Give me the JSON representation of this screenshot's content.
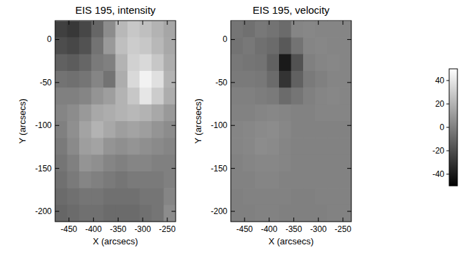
{
  "chart_data": [
    {
      "type": "heatmap",
      "title": "EIS 195, intensity",
      "x_label": "X (arcsecs)",
      "y_label": "Y (arcsecs)",
      "xlim": [
        -478,
        -233
      ],
      "ylim": [
        -212,
        22
      ],
      "xticks": [
        -450,
        -400,
        -350,
        -300,
        -250
      ],
      "yticks": [
        0,
        -50,
        -100,
        -150,
        -200
      ],
      "x": [
        -466,
        -441,
        -417,
        -392,
        -368,
        -343,
        -319,
        -294,
        -270,
        -245
      ],
      "y": [
        12,
        -7,
        -27,
        -46,
        -66,
        -85,
        -105,
        -124,
        -144,
        -163,
        -183,
        -202
      ],
      "color_range": [
        0,
        100
      ],
      "cells": [
        [
          25,
          22,
          28,
          40,
          55,
          72,
          78,
          75,
          70,
          65
        ],
        [
          30,
          28,
          32,
          45,
          60,
          75,
          80,
          78,
          72,
          66
        ],
        [
          38,
          36,
          40,
          48,
          50,
          70,
          82,
          85,
          78,
          68
        ],
        [
          45,
          44,
          46,
          52,
          45,
          68,
          85,
          95,
          88,
          70
        ],
        [
          50,
          50,
          52,
          58,
          62,
          70,
          78,
          90,
          80,
          68
        ],
        [
          52,
          55,
          60,
          66,
          68,
          70,
          72,
          70,
          66,
          60
        ],
        [
          50,
          56,
          64,
          70,
          66,
          62,
          64,
          62,
          58,
          55
        ],
        [
          48,
          54,
          62,
          64,
          58,
          56,
          58,
          56,
          54,
          52
        ],
        [
          46,
          50,
          58,
          56,
          52,
          50,
          52,
          52,
          50,
          50
        ],
        [
          44,
          48,
          52,
          50,
          48,
          46,
          48,
          48,
          48,
          50
        ],
        [
          42,
          44,
          46,
          46,
          44,
          44,
          44,
          46,
          46,
          52
        ],
        [
          40,
          42,
          44,
          44,
          42,
          42,
          42,
          44,
          46,
          55
        ]
      ]
    },
    {
      "type": "heatmap",
      "title": "EIS 195, velocity",
      "x_label": "X (arcsecs)",
      "y_label": "Y (arcsecs)",
      "xlim": [
        -478,
        -233
      ],
      "ylim": [
        -212,
        22
      ],
      "xticks": [
        -450,
        -400,
        -350,
        -300,
        -250
      ],
      "yticks": [
        0,
        -50,
        -100,
        -150,
        -200
      ],
      "x": [
        -466,
        -441,
        -417,
        -392,
        -368,
        -343,
        -319,
        -294,
        -270,
        -245
      ],
      "y": [
        12,
        -7,
        -27,
        -46,
        -66,
        -85,
        -105,
        -124,
        -144,
        -163,
        -183,
        -202
      ],
      "color_range": [
        -50,
        50
      ],
      "colorbar_ticks": [
        40,
        20,
        0,
        -20,
        -40
      ],
      "cells": [
        [
          -4,
          -6,
          -3,
          -5,
          -8,
          2,
          3,
          2,
          2,
          2
        ],
        [
          -5,
          -3,
          -6,
          -8,
          -15,
          -5,
          2,
          3,
          2,
          2
        ],
        [
          -3,
          -4,
          -5,
          -12,
          -40,
          -18,
          0,
          2,
          3,
          2
        ],
        [
          -2,
          -2,
          -3,
          -8,
          -30,
          -12,
          -2,
          0,
          2,
          2
        ],
        [
          0,
          0,
          -1,
          -2,
          -8,
          -4,
          0,
          2,
          3,
          2
        ],
        [
          1,
          1,
          2,
          3,
          2,
          1,
          1,
          2,
          2,
          2
        ],
        [
          2,
          3,
          4,
          5,
          3,
          1,
          1,
          1,
          1,
          1
        ],
        [
          2,
          3,
          5,
          4,
          2,
          1,
          1,
          1,
          1,
          1
        ],
        [
          1,
          2,
          3,
          3,
          2,
          1,
          1,
          1,
          1,
          1
        ],
        [
          1,
          1,
          2,
          2,
          1,
          1,
          1,
          1,
          1,
          1
        ],
        [
          0,
          1,
          1,
          1,
          1,
          0,
          0,
          1,
          1,
          1
        ],
        [
          0,
          0,
          1,
          1,
          0,
          0,
          0,
          0,
          1,
          1
        ]
      ]
    }
  ]
}
